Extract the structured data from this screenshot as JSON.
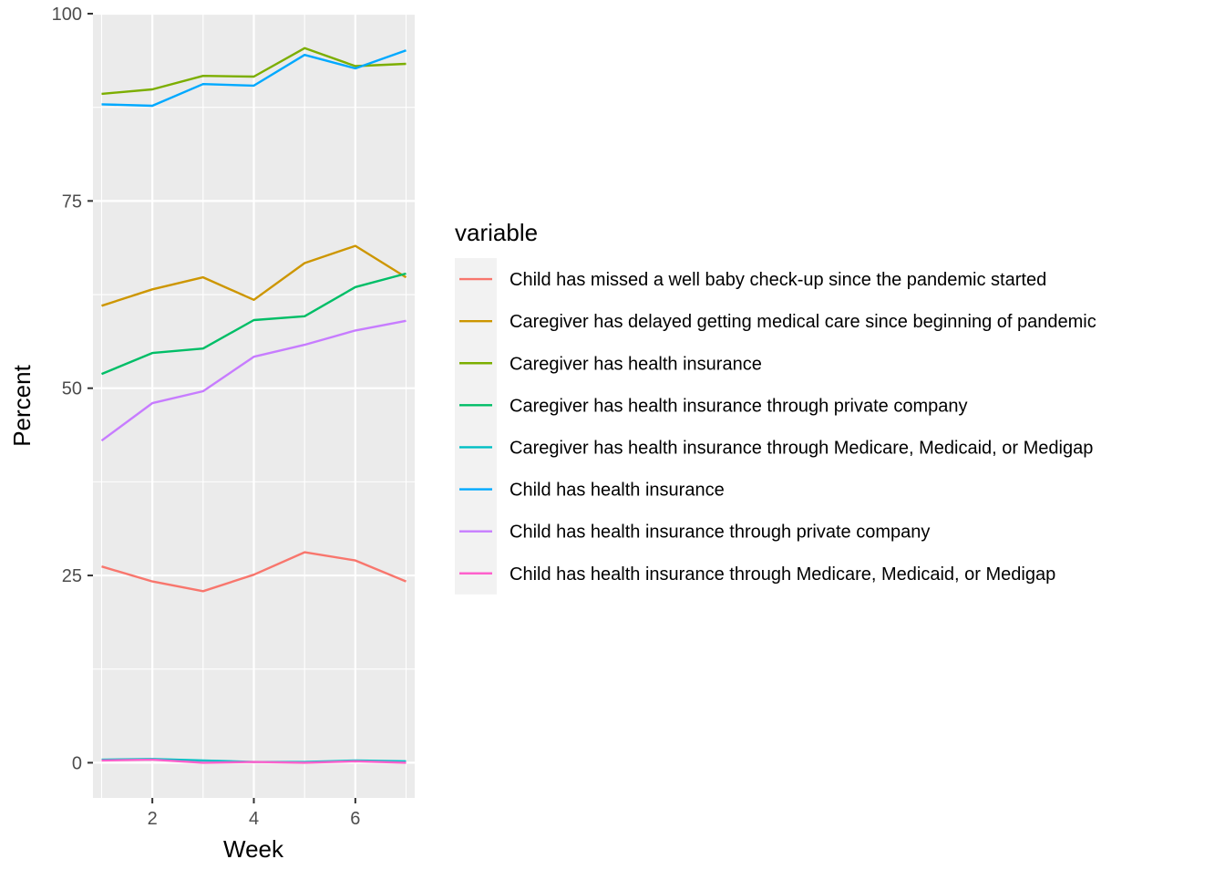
{
  "chart_data": {
    "type": "line",
    "title": "",
    "xlabel": "Week",
    "ylabel": "Percent",
    "xlim": [
      0.83,
      7.17
    ],
    "ylim": [
      -4.7,
      100
    ],
    "x_ticks": [
      2,
      4,
      6
    ],
    "y_ticks": [
      0,
      25,
      50,
      75,
      100
    ],
    "grid": true,
    "background": "#EBEBEB",
    "legend": {
      "title": "variable",
      "position": "right"
    },
    "x": [
      1,
      2,
      3,
      4,
      5,
      6,
      7
    ],
    "series": [
      {
        "name": "Child has missed a well baby check-up since the pandemic started",
        "color": "#F8766D",
        "values": [
          26.2,
          24.2,
          22.9,
          25.1,
          28.1,
          27.0,
          24.2
        ]
      },
      {
        "name": "Caregiver has delayed getting medical care since beginning of pandemic",
        "color": "#CD9600",
        "values": [
          61.0,
          63.2,
          64.8,
          61.8,
          66.7,
          69.0,
          64.8
        ]
      },
      {
        "name": "Caregiver has health insurance",
        "color": "#7CAE00",
        "values": [
          89.3,
          89.9,
          91.7,
          91.6,
          95.4,
          93.0,
          93.3
        ]
      },
      {
        "name": "Caregiver has health insurance through private company",
        "color": "#00BE67",
        "values": [
          51.9,
          54.7,
          55.3,
          59.1,
          59.6,
          63.5,
          65.3
        ]
      },
      {
        "name": "Caregiver has health insurance through Medicare, Medicaid, or Medigap",
        "color": "#00BFC4",
        "values": [
          0.4,
          0.5,
          0.3,
          0.1,
          0.1,
          0.3,
          0.2
        ]
      },
      {
        "name": "Child has health insurance",
        "color": "#00A9FF",
        "values": [
          87.9,
          87.7,
          90.6,
          90.4,
          94.5,
          92.7,
          95.1
        ]
      },
      {
        "name": "Child has health insurance through private company",
        "color": "#C77CFF",
        "values": [
          43.0,
          48.0,
          49.6,
          54.2,
          55.8,
          57.7,
          59.0
        ]
      },
      {
        "name": "Child has health insurance through Medicare, Medicaid, or Medigap",
        "color": "#FF61CC",
        "values": [
          0.3,
          0.4,
          0.0,
          0.1,
          0.0,
          0.2,
          0.0
        ]
      }
    ]
  }
}
